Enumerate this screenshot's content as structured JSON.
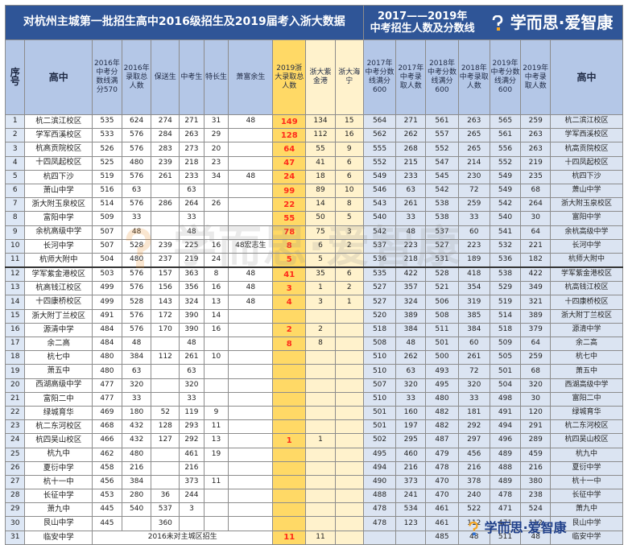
{
  "left_title": "对杭州主城第一批招生高中2016级招生及2019届考入浙大数据",
  "right_title_line1": "2017——2019年",
  "right_title_line2": "中考招生人数及分数线",
  "brand": "学而思·爱智康",
  "footer_brand": "学而思·爱智康",
  "watermark": "学而思·爱智康",
  "headers": {
    "seq": "序号",
    "school": "高中",
    "c1": "2016年中考分数线满分570",
    "c2": "2016年录取总人数",
    "c3": "保送生",
    "c4": "中考生",
    "c5": "特长生",
    "c6": "萧富余生",
    "c7": "2019浙大录取总人数",
    "c8": "浙大紫金港",
    "c9": "浙大海宁",
    "c10": "2017年中考分数线满分600",
    "c11": "2017年中考录取人数",
    "c12": "2018年中考分数线满分600",
    "c13": "2018年中考录取人数",
    "c14": "2019年中考分数线满分600",
    "c15": "2019年中考录取人数",
    "school_r": "高中"
  },
  "rows": [
    {
      "n": "1",
      "s": "杭二滨江校区",
      "a": "535",
      "b": "624",
      "c": "274",
      "d": "271",
      "e": "31",
      "f": "48",
      "g": "149",
      "h": "134",
      "i": "15",
      "j": "564",
      "k": "271",
      "l": "561",
      "m": "263",
      "o": "565",
      "p": "259",
      "r": "杭二滨江校区"
    },
    {
      "n": "2",
      "s": "学军西溪校区",
      "a": "533",
      "b": "576",
      "c": "284",
      "d": "263",
      "e": "29",
      "f": "",
      "g": "128",
      "h": "112",
      "i": "16",
      "j": "562",
      "k": "262",
      "l": "557",
      "m": "265",
      "o": "561",
      "p": "263",
      "r": "学军西溪校区"
    },
    {
      "n": "3",
      "s": "杭高贡院校区",
      "a": "526",
      "b": "576",
      "c": "283",
      "d": "273",
      "e": "20",
      "f": "",
      "g": "64",
      "h": "55",
      "i": "9",
      "j": "555",
      "k": "268",
      "l": "552",
      "m": "265",
      "o": "556",
      "p": "263",
      "r": "杭高贡院校区"
    },
    {
      "n": "4",
      "s": "十四凤起校区",
      "a": "525",
      "b": "480",
      "c": "239",
      "d": "218",
      "e": "23",
      "f": "",
      "g": "47",
      "h": "41",
      "i": "6",
      "j": "552",
      "k": "215",
      "l": "547",
      "m": "214",
      "o": "552",
      "p": "219",
      "r": "十四凤起校区"
    },
    {
      "n": "5",
      "s": "杭四下沙",
      "a": "519",
      "b": "576",
      "c": "261",
      "d": "233",
      "e": "34",
      "f": "48",
      "g": "24",
      "h": "18",
      "i": "6",
      "j": "549",
      "k": "233",
      "l": "545",
      "m": "230",
      "o": "549",
      "p": "235",
      "r": "杭四下沙"
    },
    {
      "n": "6",
      "s": "萧山中学",
      "a": "516",
      "b": "63",
      "c": "",
      "d": "63",
      "e": "",
      "f": "",
      "g": "99",
      "h": "89",
      "i": "10",
      "j": "546",
      "k": "63",
      "l": "542",
      "m": "72",
      "o": "549",
      "p": "68",
      "r": "萧山中学"
    },
    {
      "n": "7",
      "s": "浙大附玉泉校区",
      "a": "514",
      "b": "576",
      "c": "286",
      "d": "264",
      "e": "26",
      "f": "",
      "g": "22",
      "h": "14",
      "i": "8",
      "j": "543",
      "k": "261",
      "l": "538",
      "m": "259",
      "o": "542",
      "p": "264",
      "r": "浙大附玉泉校区"
    },
    {
      "n": "8",
      "s": "富阳中学",
      "a": "509",
      "b": "33",
      "c": "",
      "d": "33",
      "e": "",
      "f": "",
      "g": "55",
      "h": "50",
      "i": "5",
      "j": "540",
      "k": "33",
      "l": "538",
      "m": "33",
      "o": "540",
      "p": "30",
      "r": "富阳中学"
    },
    {
      "n": "9",
      "s": "余杭高级中学",
      "a": "507",
      "b": "48",
      "c": "",
      "d": "48",
      "e": "",
      "f": "",
      "g": "78",
      "h": "75",
      "i": "3",
      "j": "542",
      "k": "48",
      "l": "537",
      "m": "60",
      "o": "541",
      "p": "64",
      "r": "余杭高级中学"
    },
    {
      "n": "10",
      "s": "长河中学",
      "a": "507",
      "b": "528",
      "c": "239",
      "d": "225",
      "e": "16",
      "f": "48宏志生",
      "g": "8",
      "h": "6",
      "i": "2",
      "j": "537",
      "k": "223",
      "l": "527",
      "m": "223",
      "o": "532",
      "p": "221",
      "r": "长河中学"
    },
    {
      "n": "11",
      "s": "杭师大附中",
      "a": "504",
      "b": "480",
      "c": "237",
      "d": "219",
      "e": "24",
      "f": "",
      "g": "5",
      "h": "5",
      "i": "",
      "j": "536",
      "k": "218",
      "l": "531",
      "m": "189",
      "o": "536",
      "p": "182",
      "r": "杭师大附中"
    },
    {
      "n": "12",
      "s": "学军紫金港校区",
      "a": "503",
      "b": "576",
      "c": "157",
      "d": "363",
      "e": "8",
      "f": "48",
      "g": "41",
      "h": "35",
      "i": "6",
      "j": "535",
      "k": "422",
      "l": "528",
      "m": "418",
      "o": "538",
      "p": "422",
      "r": "学军紫金港校区"
    },
    {
      "n": "13",
      "s": "杭高钱江校区",
      "a": "499",
      "b": "576",
      "c": "156",
      "d": "356",
      "e": "16",
      "f": "48",
      "g": "3",
      "h": "1",
      "i": "2",
      "j": "527",
      "k": "357",
      "l": "521",
      "m": "354",
      "o": "529",
      "p": "349",
      "r": "杭高钱江校区"
    },
    {
      "n": "14",
      "s": "十四康桥校区",
      "a": "499",
      "b": "528",
      "c": "143",
      "d": "324",
      "e": "13",
      "f": "48",
      "g": "4",
      "h": "3",
      "i": "1",
      "j": "527",
      "k": "324",
      "l": "506",
      "m": "319",
      "o": "519",
      "p": "321",
      "r": "十四康桥校区"
    },
    {
      "n": "15",
      "s": "浙大附丁兰校区",
      "a": "491",
      "b": "576",
      "c": "172",
      "d": "390",
      "e": "14",
      "f": "",
      "g": "",
      "h": "",
      "i": "",
      "j": "520",
      "k": "389",
      "l": "508",
      "m": "385",
      "o": "514",
      "p": "389",
      "r": "浙大附丁兰校区"
    },
    {
      "n": "16",
      "s": "源清中学",
      "a": "484",
      "b": "576",
      "c": "170",
      "d": "390",
      "e": "16",
      "f": "",
      "g": "2",
      "h": "2",
      "i": "",
      "j": "518",
      "k": "384",
      "l": "511",
      "m": "384",
      "o": "518",
      "p": "379",
      "r": "源清中学"
    },
    {
      "n": "17",
      "s": "余二高",
      "a": "484",
      "b": "48",
      "c": "",
      "d": "48",
      "e": "",
      "f": "",
      "g": "8",
      "h": "8",
      "i": "",
      "j": "508",
      "k": "48",
      "l": "501",
      "m": "60",
      "o": "509",
      "p": "64",
      "r": "余二高"
    },
    {
      "n": "18",
      "s": "杭七中",
      "a": "480",
      "b": "384",
      "c": "112",
      "d": "261",
      "e": "10",
      "f": "",
      "g": "",
      "h": "",
      "i": "",
      "j": "510",
      "k": "262",
      "l": "500",
      "m": "261",
      "o": "505",
      "p": "259",
      "r": "杭七中"
    },
    {
      "n": "19",
      "s": "萧五中",
      "a": "480",
      "b": "63",
      "c": "",
      "d": "63",
      "e": "",
      "f": "",
      "g": "",
      "h": "",
      "i": "",
      "j": "510",
      "k": "63",
      "l": "493",
      "m": "72",
      "o": "501",
      "p": "68",
      "r": "萧五中"
    },
    {
      "n": "20",
      "s": "西湖高级中学",
      "a": "477",
      "b": "320",
      "c": "",
      "d": "320",
      "e": "",
      "f": "",
      "g": "",
      "h": "",
      "i": "",
      "j": "507",
      "k": "320",
      "l": "495",
      "m": "320",
      "o": "504",
      "p": "320",
      "r": "西湖高级中学"
    },
    {
      "n": "21",
      "s": "富阳二中",
      "a": "477",
      "b": "33",
      "c": "",
      "d": "33",
      "e": "",
      "f": "",
      "g": "",
      "h": "",
      "i": "",
      "j": "510",
      "k": "33",
      "l": "480",
      "m": "33",
      "o": "498",
      "p": "30",
      "r": "富阳二中"
    },
    {
      "n": "22",
      "s": "绿城育华",
      "a": "469",
      "b": "180",
      "c": "52",
      "d": "119",
      "e": "9",
      "f": "",
      "g": "",
      "h": "",
      "i": "",
      "j": "501",
      "k": "160",
      "l": "482",
      "m": "181",
      "o": "491",
      "p": "120",
      "r": "绿城育华"
    },
    {
      "n": "23",
      "s": "杭二东河校区",
      "a": "468",
      "b": "432",
      "c": "128",
      "d": "293",
      "e": "11",
      "f": "",
      "g": "",
      "h": "",
      "i": "",
      "j": "501",
      "k": "197",
      "l": "482",
      "m": "292",
      "o": "494",
      "p": "291",
      "r": "杭二东河校区"
    },
    {
      "n": "24",
      "s": "杭四吴山校区",
      "a": "466",
      "b": "432",
      "c": "127",
      "d": "292",
      "e": "13",
      "f": "",
      "g": "1",
      "h": "1",
      "i": "",
      "j": "502",
      "k": "295",
      "l": "487",
      "m": "297",
      "o": "496",
      "p": "289",
      "r": "杭四吴山校区"
    },
    {
      "n": "25",
      "s": "杭九中",
      "a": "462",
      "b": "480",
      "c": "",
      "d": "461",
      "e": "19",
      "f": "",
      "g": "",
      "h": "",
      "i": "",
      "j": "495",
      "k": "460",
      "l": "479",
      "m": "456",
      "o": "489",
      "p": "459",
      "r": "杭九中"
    },
    {
      "n": "26",
      "s": "夏衍中学",
      "a": "458",
      "b": "216",
      "c": "",
      "d": "216",
      "e": "",
      "f": "",
      "g": "",
      "h": "",
      "i": "",
      "j": "494",
      "k": "216",
      "l": "478",
      "m": "216",
      "o": "488",
      "p": "216",
      "r": "夏衍中学"
    },
    {
      "n": "27",
      "s": "杭十一中",
      "a": "456",
      "b": "384",
      "c": "",
      "d": "373",
      "e": "11",
      "f": "",
      "g": "",
      "h": "",
      "i": "",
      "j": "490",
      "k": "373",
      "l": "470",
      "m": "378",
      "o": "489",
      "p": "380",
      "r": "杭十一中"
    },
    {
      "n": "28",
      "s": "长征中学",
      "a": "453",
      "b": "280",
      "c": "36",
      "d": "244",
      "e": "",
      "f": "",
      "g": "",
      "h": "",
      "i": "",
      "j": "488",
      "k": "241",
      "l": "470",
      "m": "240",
      "o": "478",
      "p": "238",
      "r": "长征中学"
    },
    {
      "n": "29",
      "s": "萧九中",
      "a": "445",
      "b": "540",
      "c": "537",
      "d": "3",
      "e": "",
      "f": "",
      "g": "",
      "h": "",
      "i": "",
      "j": "478",
      "k": "534",
      "l": "461",
      "m": "522",
      "o": "471",
      "p": "524",
      "r": "萧九中"
    },
    {
      "n": "30",
      "s": "艮山中学",
      "a": "445",
      "b": "",
      "c": "360",
      "d": "",
      "e": "",
      "f": "",
      "g": "",
      "h": "",
      "i": "",
      "j": "478",
      "k": "123",
      "l": "461",
      "m": "112",
      "o": "471",
      "p": "112",
      "r": "艮山中学"
    },
    {
      "n": "31",
      "s": "临安中学",
      "a": "",
      "b": "",
      "c": "",
      "d": "",
      "e": "",
      "f": "",
      "g": "11",
      "h": "11",
      "i": "",
      "j": "",
      "k": "",
      "l": "485",
      "m": "48",
      "o": "511",
      "p": "48",
      "r": "临安中学"
    }
  ],
  "row31_note": "2016未对主城区招生"
}
